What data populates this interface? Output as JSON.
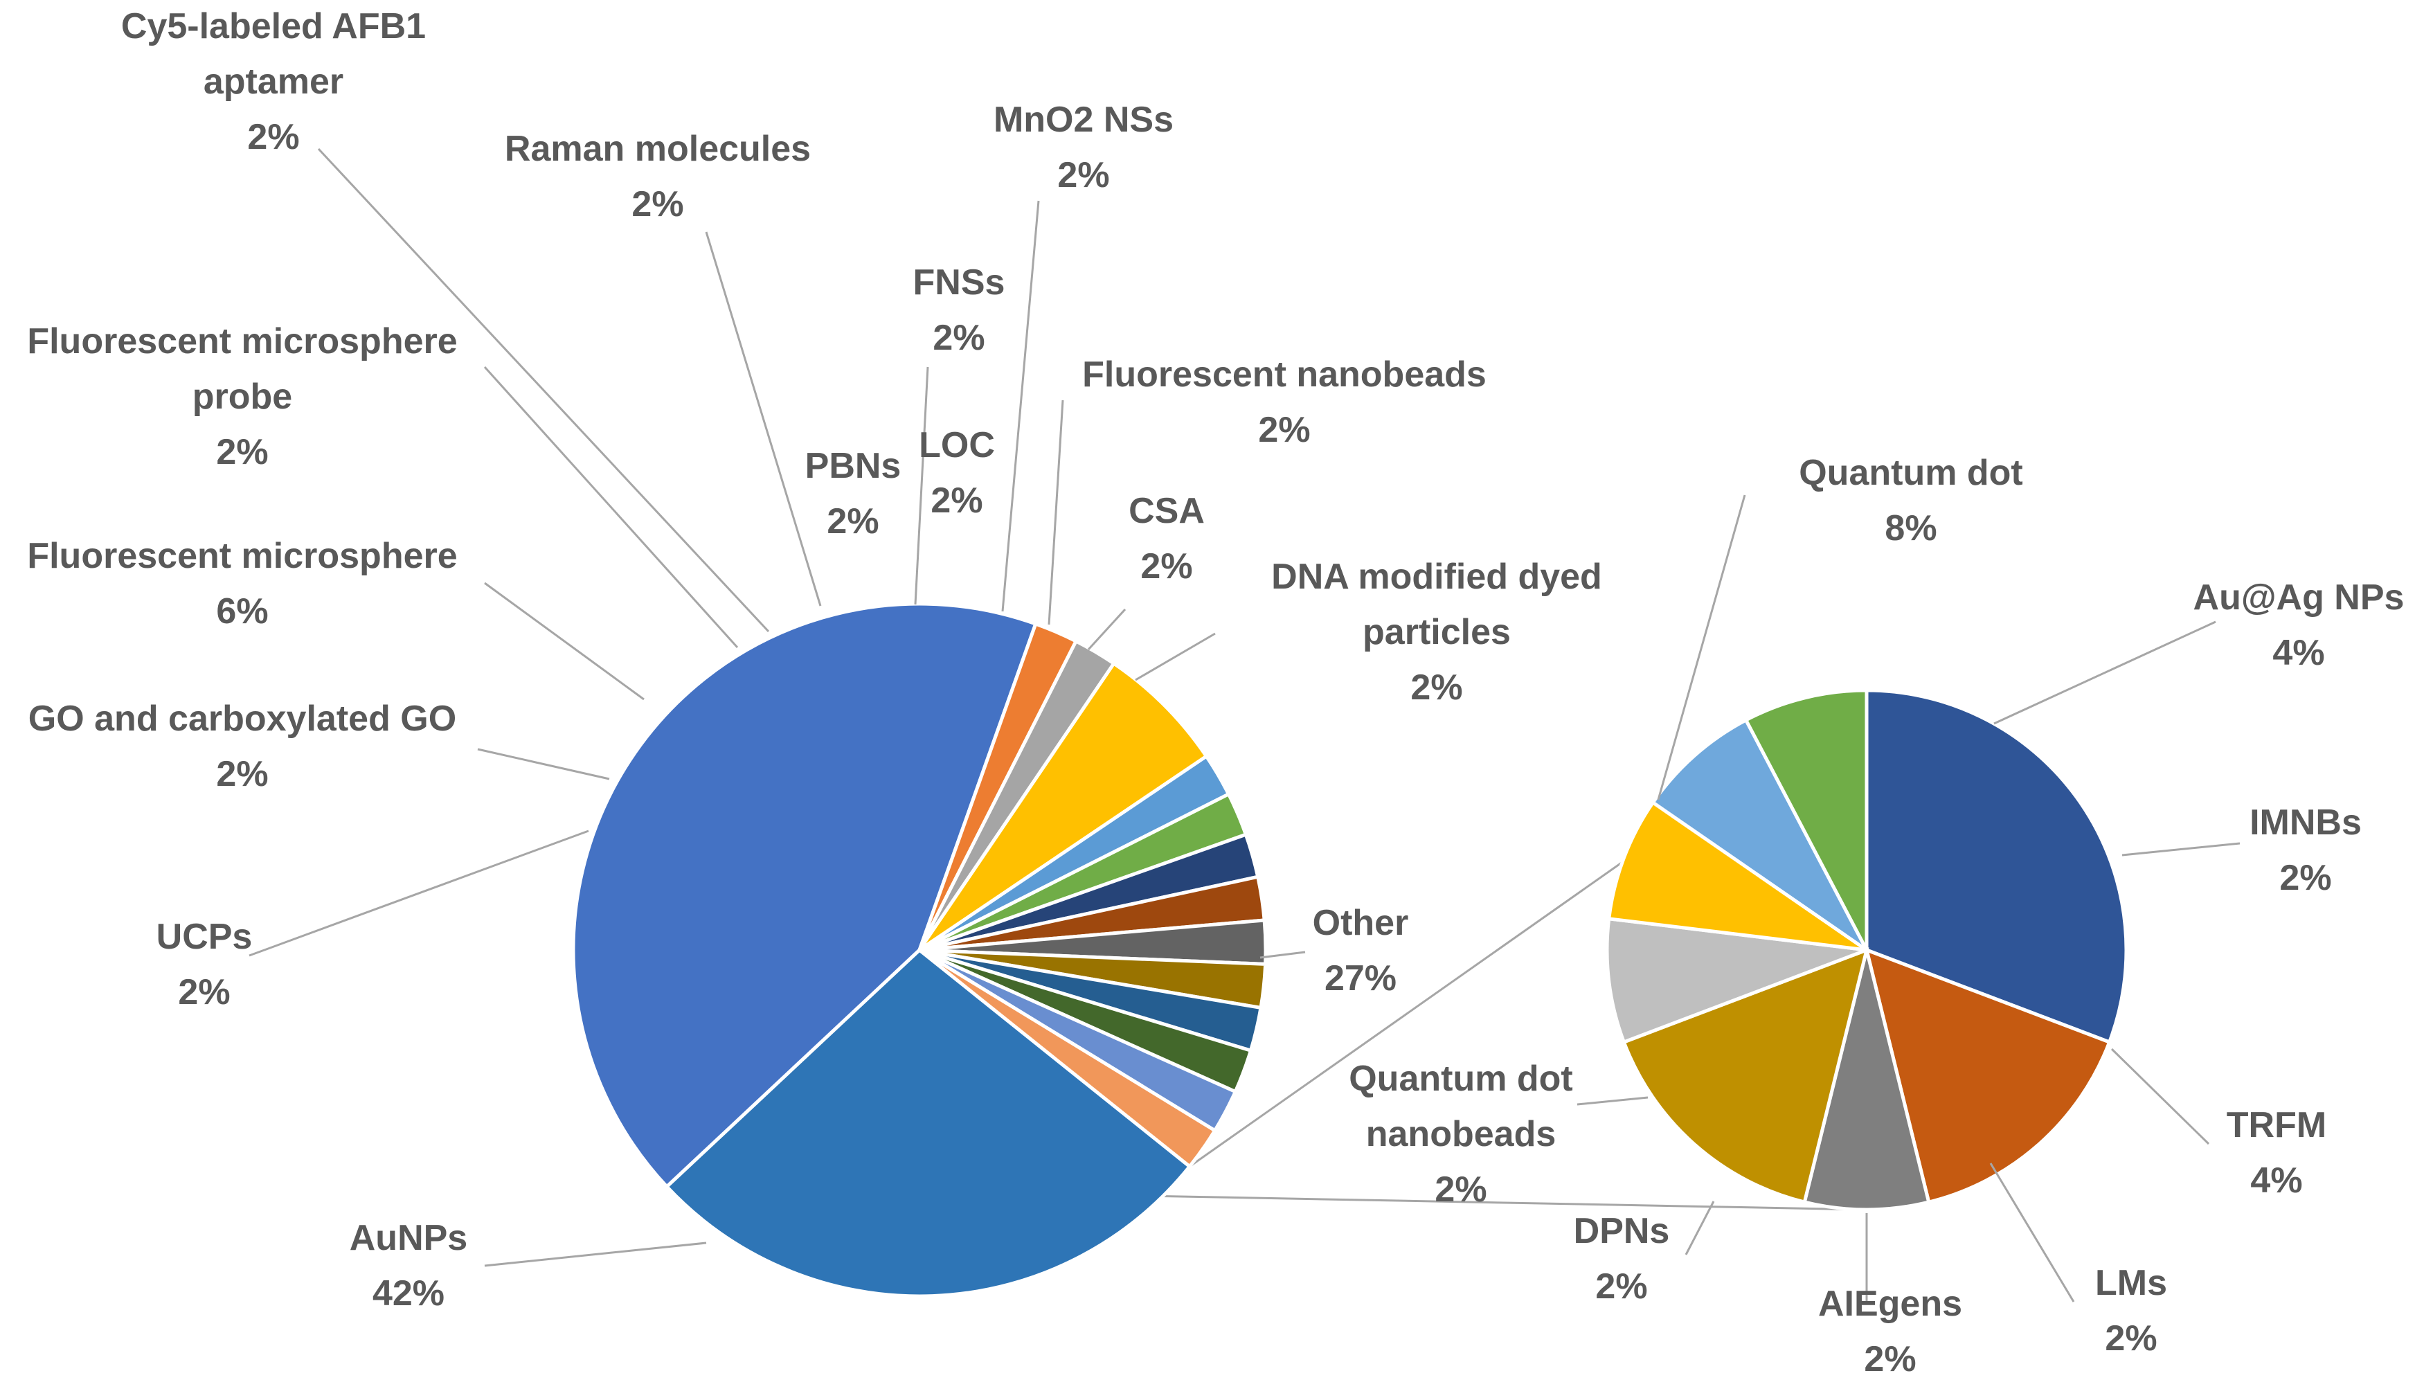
{
  "chart_data": {
    "type": "pie",
    "subtype": "pie-of-pie",
    "main": {
      "slices": [
        {
          "name": "AuNPs",
          "label_lines": [
            "AuNPs",
            "42%"
          ],
          "value": 42,
          "color": "#4472C4"
        },
        {
          "name": "UCPs",
          "label_lines": [
            "UCPs",
            "2%"
          ],
          "value": 2,
          "color": "#ED7D31"
        },
        {
          "name": "GO and carboxylated GO",
          "label_lines": [
            "GO and carboxylated GO",
            "2%"
          ],
          "value": 2,
          "color": "#A5A5A5"
        },
        {
          "name": "Fluorescent microsphere",
          "label_lines": [
            "Fluorescent microsphere",
            "6%"
          ],
          "value": 6,
          "color": "#FFC000"
        },
        {
          "name": "Fluorescent microsphere probe",
          "label_lines": [
            "Fluorescent microsphere",
            "probe",
            "2%"
          ],
          "value": 2,
          "color": "#5B9BD5"
        },
        {
          "name": "Cy5-labeled AFB1 aptamer",
          "label_lines": [
            "Cy5-labeled AFB1",
            "aptamer",
            "2%"
          ],
          "value": 2,
          "color": "#70AD47"
        },
        {
          "name": "Raman molecules",
          "label_lines": [
            "Raman molecules",
            "2%"
          ],
          "value": 2,
          "color": "#264478"
        },
        {
          "name": "PBNs",
          "label_lines": [
            "PBNs",
            "2%"
          ],
          "value": 2,
          "color": "#9E480E"
        },
        {
          "name": "FNSs",
          "label_lines": [
            "FNSs",
            "2%"
          ],
          "value": 2,
          "color": "#636363"
        },
        {
          "name": "LOC",
          "label_lines": [
            "LOC",
            "2%"
          ],
          "value": 2,
          "color": "#997300"
        },
        {
          "name": "MnO2 NSs",
          "label_lines": [
            "MnO2 NSs",
            "2%"
          ],
          "value": 2,
          "color": "#255E91"
        },
        {
          "name": "Fluorescent nanobeads",
          "label_lines": [
            "Fluorescent nanobeads",
            "2%"
          ],
          "value": 2,
          "color": "#43682B"
        },
        {
          "name": "CSA",
          "label_lines": [
            "CSA",
            "2%"
          ],
          "value": 2,
          "color": "#698ED0"
        },
        {
          "name": "DNA modified dyed particles",
          "label_lines": [
            "DNA modified dyed",
            "particles",
            "2%"
          ],
          "value": 2,
          "color": "#F1975A"
        },
        {
          "name": "Other",
          "label_lines": [
            "Other",
            "27%"
          ],
          "value": 27,
          "color": "#2E75B6"
        }
      ]
    },
    "secondary": {
      "parent": "Other",
      "slices": [
        {
          "name": "Quantum dot",
          "label_lines": [
            "Quantum dot",
            "8%"
          ],
          "value": 8,
          "color": "#2F5597"
        },
        {
          "name": "Au@Ag NPs",
          "label_lines": [
            "Au@Ag NPs",
            "4%"
          ],
          "value": 4,
          "color": "#C55A11"
        },
        {
          "name": "IMNBs",
          "label_lines": [
            "IMNBs",
            "2%"
          ],
          "value": 2,
          "color": "#7F7F7F"
        },
        {
          "name": "TRFM",
          "label_lines": [
            "TRFM",
            "4%"
          ],
          "value": 4,
          "color": "#BF9000"
        },
        {
          "name": "LMs",
          "label_lines": [
            "LMs",
            "2%"
          ],
          "value": 2,
          "color": "#BFBFBF"
        },
        {
          "name": "AIEgens",
          "label_lines": [
            "AIEgens",
            "2%"
          ],
          "value": 2,
          "color": "#FFC000"
        },
        {
          "name": "DPNs",
          "label_lines": [
            "DPNs",
            "2%"
          ],
          "value": 2,
          "color": "#6FA8DC"
        },
        {
          "name": "Quantum dot nanobeads",
          "label_lines": [
            "Quantum dot",
            "nanobeads",
            "2%"
          ],
          "value": 2,
          "color": "#70AD47"
        }
      ]
    },
    "title": "",
    "legend": "none"
  }
}
